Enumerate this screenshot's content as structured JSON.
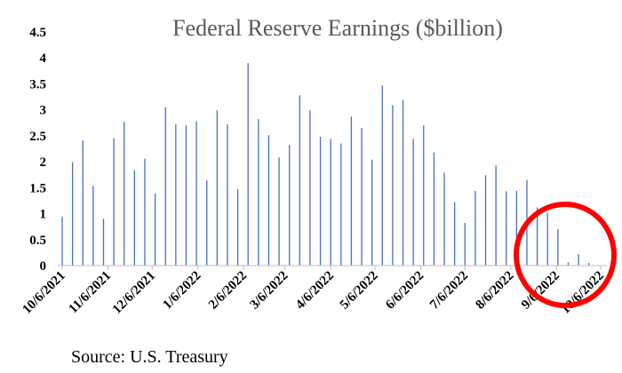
{
  "chart_data": {
    "type": "bar",
    "title": "Federal Reserve Earnings ($billion)",
    "source": "Source: U.S. Treasury",
    "xlabel": "",
    "ylabel": "",
    "ylim": [
      0,
      4.5
    ],
    "yticks": [
      "0",
      "0.5",
      "1",
      "1.5",
      "2",
      "2.5",
      "3",
      "3.5",
      "4",
      "4.5"
    ],
    "xticks": [
      "10/6/2021",
      "11/6/2021",
      "12/6/2021",
      "1/6/2022",
      "2/6/2022",
      "3/6/2022",
      "4/6/2022",
      "5/6/2022",
      "6/6/2022",
      "7/6/2022",
      "8/6/2022",
      "9/6/2022",
      "10/6/2022"
    ],
    "x": [
      "2021-10-06",
      "2021-10-13",
      "2021-10-20",
      "2021-10-27",
      "2021-11-03",
      "2021-11-10",
      "2021-11-17",
      "2021-11-24",
      "2021-12-01",
      "2021-12-08",
      "2021-12-15",
      "2021-12-22",
      "2021-12-29",
      "2022-01-05",
      "2022-01-12",
      "2022-01-19",
      "2022-01-26",
      "2022-02-02",
      "2022-02-09",
      "2022-02-16",
      "2022-02-23",
      "2022-03-02",
      "2022-03-09",
      "2022-03-16",
      "2022-03-23",
      "2022-03-30",
      "2022-04-06",
      "2022-04-13",
      "2022-04-20",
      "2022-04-27",
      "2022-05-04",
      "2022-05-11",
      "2022-05-18",
      "2022-05-25",
      "2022-06-01",
      "2022-06-08",
      "2022-06-15",
      "2022-06-22",
      "2022-06-29",
      "2022-07-06",
      "2022-07-13",
      "2022-07-20",
      "2022-07-27",
      "2022-08-03",
      "2022-08-10",
      "2022-08-17",
      "2022-08-24",
      "2022-08-31",
      "2022-09-07",
      "2022-09-14",
      "2022-09-21",
      "2022-09-28"
    ],
    "values": [
      0.94,
      1.99,
      2.41,
      1.54,
      0.9,
      2.45,
      2.77,
      1.84,
      2.06,
      1.39,
      3.05,
      2.72,
      2.7,
      2.78,
      1.64,
      2.99,
      2.72,
      1.47,
      3.9,
      2.82,
      2.51,
      2.08,
      2.32,
      3.28,
      2.99,
      2.48,
      2.44,
      2.35,
      2.87,
      2.65,
      2.04,
      3.47,
      3.09,
      3.19,
      2.44,
      2.7,
      2.18,
      1.79,
      1.22,
      0.82,
      1.44,
      1.74,
      1.93,
      1.43,
      1.44,
      1.65,
      1.12,
      1.01,
      0.7,
      0.06,
      0.22,
      0.05
    ],
    "bar_color": "#4472C4",
    "annotation_color": "#FF0000",
    "grid": false,
    "legend": "none"
  }
}
